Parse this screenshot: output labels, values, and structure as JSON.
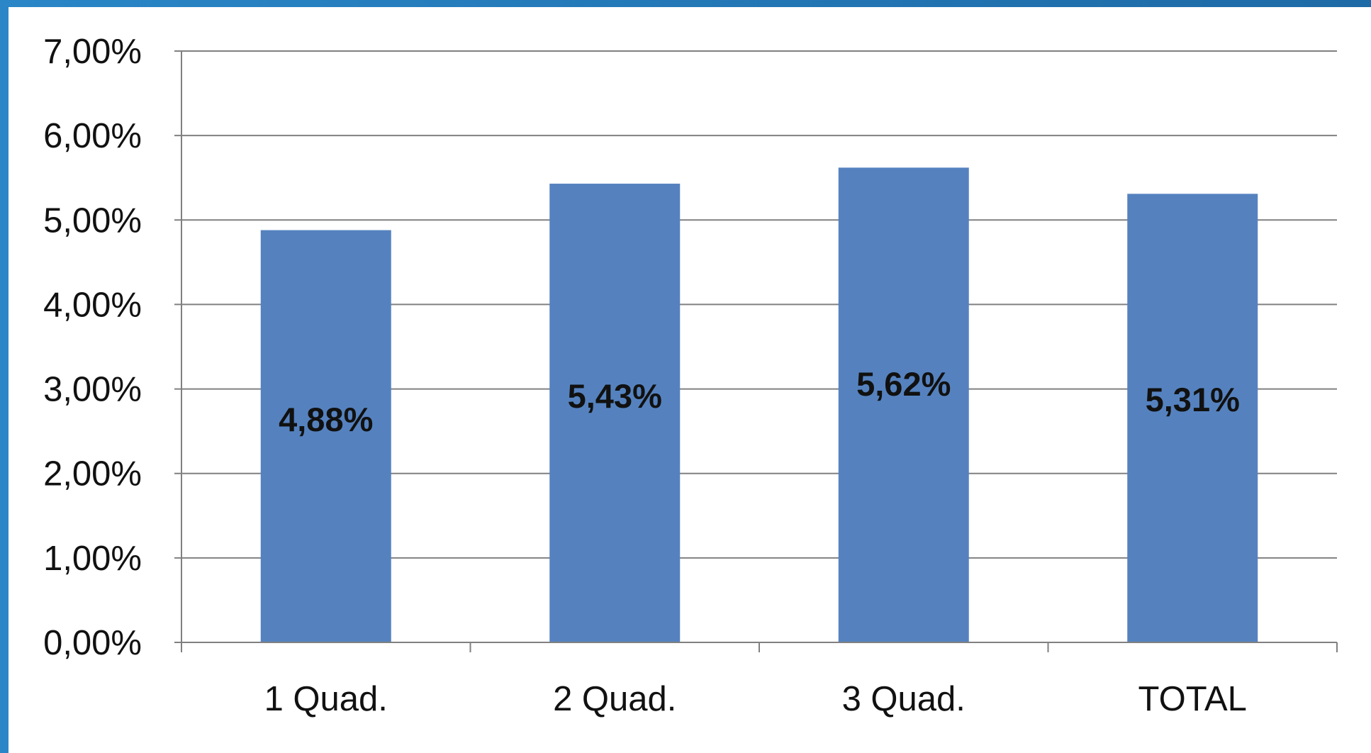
{
  "colors": {
    "bar": "#5582bf",
    "grid": "#808080",
    "frame": "#2276b6"
  },
  "chart_data": {
    "type": "bar",
    "title": "",
    "xlabel": "",
    "ylabel": "",
    "categories": [
      "1 Quad.",
      "2 Quad.",
      "3 Quad.",
      "TOTAL"
    ],
    "series": [
      {
        "values": [
          4.88,
          5.43,
          5.62,
          5.31
        ]
      }
    ],
    "data_labels": [
      "4,88%",
      "5,43%",
      "5,62%",
      "5,31%"
    ],
    "ylim": [
      0,
      7
    ],
    "y_ticks": [
      {
        "value": 0,
        "label": "0,00%"
      },
      {
        "value": 1,
        "label": "1,00%"
      },
      {
        "value": 2,
        "label": "2,00%"
      },
      {
        "value": 3,
        "label": "3,00%"
      },
      {
        "value": 4,
        "label": "4,00%"
      },
      {
        "value": 5,
        "label": "5,00%"
      },
      {
        "value": 6,
        "label": "6,00%"
      },
      {
        "value": 7,
        "label": "7,00%"
      }
    ],
    "grid": true,
    "legend": "none"
  }
}
